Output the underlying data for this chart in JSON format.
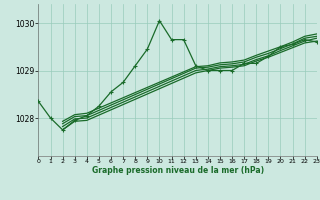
{
  "bg_color": "#cce8e0",
  "grid_color": "#99ccbb",
  "line_color": "#1a6b2a",
  "xlim": [
    0,
    23
  ],
  "ylim": [
    1027.2,
    1030.4
  ],
  "yticks": [
    1028,
    1029,
    1030
  ],
  "xticks": [
    0,
    1,
    2,
    3,
    4,
    5,
    6,
    7,
    8,
    9,
    10,
    11,
    12,
    13,
    14,
    15,
    16,
    17,
    18,
    19,
    20,
    21,
    22,
    23
  ],
  "xlabel": "Graphe pression niveau de la mer (hPa)",
  "series1_x": [
    0,
    1,
    2,
    3,
    4,
    5,
    6,
    7,
    8,
    9,
    10,
    11,
    12,
    13,
    14,
    15,
    16,
    17,
    18,
    19,
    20,
    21,
    22,
    23
  ],
  "series1_y": [
    1028.35,
    1028.0,
    1027.75,
    1027.95,
    1028.05,
    1028.25,
    1028.55,
    1028.75,
    1029.1,
    1029.45,
    1030.05,
    1029.65,
    1029.65,
    1029.1,
    1029.0,
    1029.0,
    1029.0,
    1029.15,
    1029.15,
    1029.3,
    1029.5,
    1029.55,
    1029.65,
    1029.6
  ],
  "series2_x": [
    2,
    3,
    4,
    13,
    14,
    15,
    16,
    17,
    18,
    19,
    20,
    21,
    22,
    23
  ],
  "series2_y": [
    1027.75,
    1027.93,
    1027.95,
    1028.95,
    1029.0,
    1029.05,
    1029.07,
    1029.1,
    1029.2,
    1029.28,
    1029.38,
    1029.48,
    1029.58,
    1029.62
  ],
  "series3_x": [
    2,
    3,
    4,
    13,
    14,
    15,
    16,
    17,
    18,
    19,
    20,
    21,
    22,
    23
  ],
  "series3_y": [
    1027.82,
    1027.98,
    1028.0,
    1029.0,
    1029.03,
    1029.08,
    1029.1,
    1029.13,
    1029.23,
    1029.31,
    1029.42,
    1029.52,
    1029.62,
    1029.68
  ],
  "series4_x": [
    2,
    3,
    4,
    13,
    14,
    15,
    16,
    17,
    18,
    19,
    20,
    21,
    22,
    23
  ],
  "series4_y": [
    1027.88,
    1028.03,
    1028.05,
    1029.05,
    1029.07,
    1029.12,
    1029.14,
    1029.18,
    1029.28,
    1029.36,
    1029.46,
    1029.56,
    1029.68,
    1029.72
  ],
  "series5_x": [
    2,
    3,
    4,
    13,
    14,
    15,
    16,
    17,
    18,
    19,
    20,
    21,
    22,
    23
  ],
  "series5_y": [
    1027.93,
    1028.07,
    1028.1,
    1029.08,
    1029.1,
    1029.16,
    1029.18,
    1029.22,
    1029.32,
    1029.41,
    1029.5,
    1029.6,
    1029.72,
    1029.77
  ]
}
